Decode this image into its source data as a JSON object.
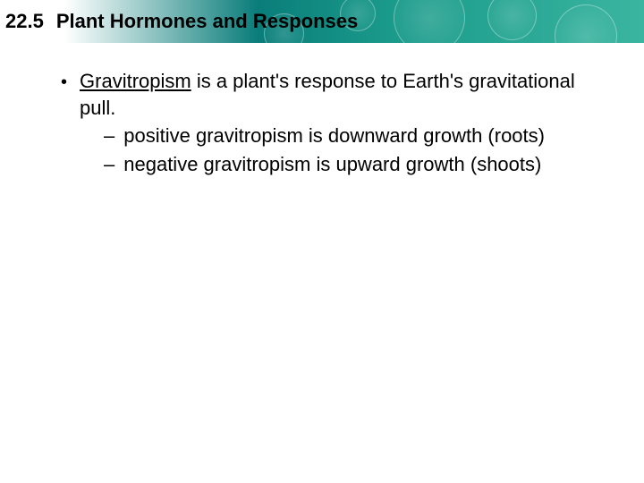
{
  "header": {
    "section_number": "22.5",
    "section_title": "Plant Hormones and Responses"
  },
  "content": {
    "main_term": "Gravitropism",
    "main_rest": " is a plant's response to Earth's gravitational pull.",
    "sub1": "positive gravitropism is downward growth (roots)",
    "sub2": "negative gravitropism is upward growth (shoots)"
  },
  "colors": {
    "text": "#000000",
    "background": "#ffffff",
    "header_teal_dark": "#0a7d7a",
    "header_teal_light": "#3ab5a0"
  }
}
